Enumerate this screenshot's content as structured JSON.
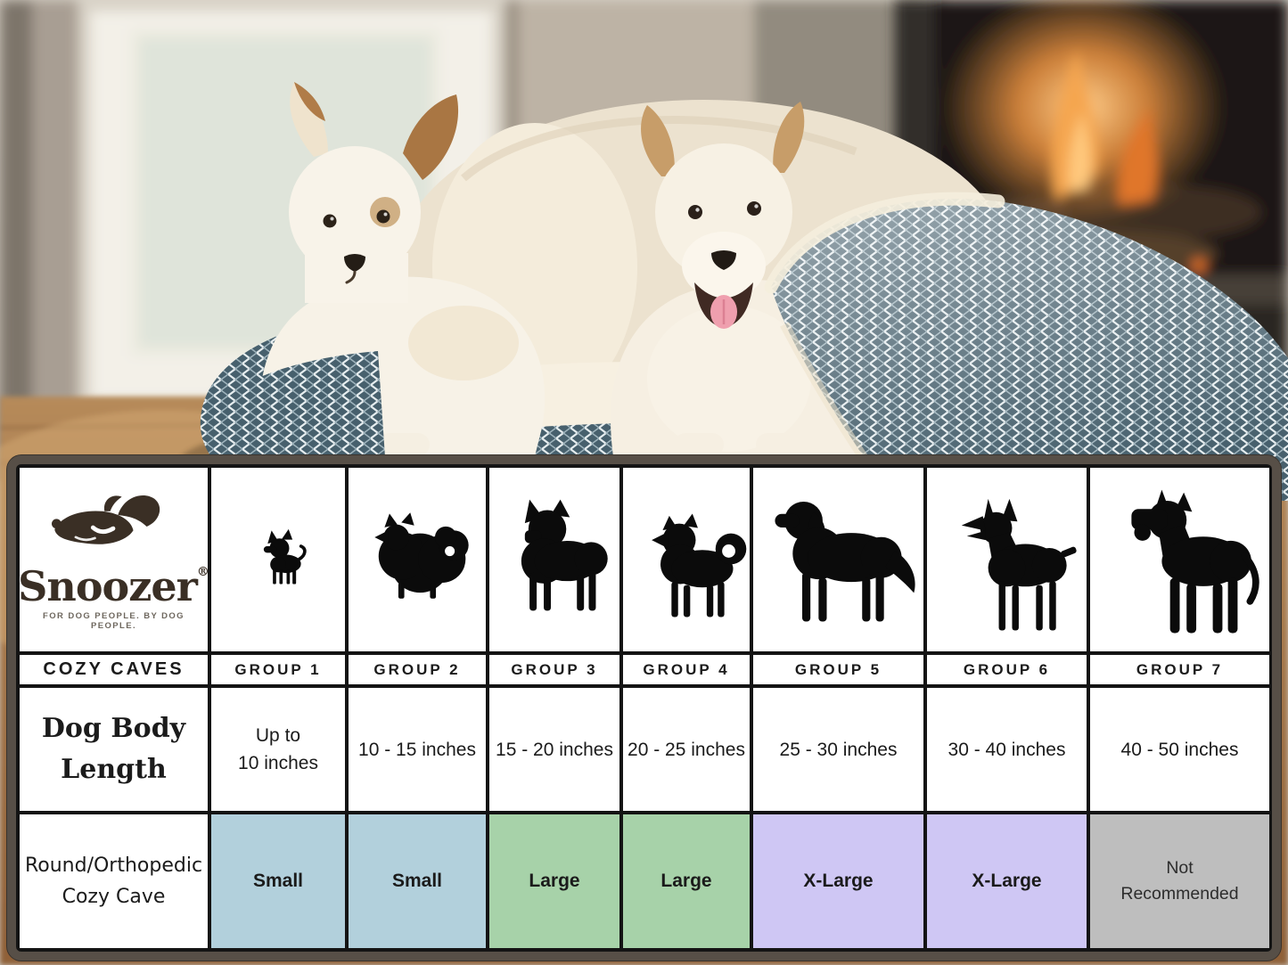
{
  "hero": {
    "alt": "Two small white dogs resting in a sherpa-lined herringbone Cozy Cave dog bed in front of a lit fireplace"
  },
  "brand": {
    "name": "Snoozer",
    "registered_mark": "®",
    "tagline": "FOR DOG PEOPLE. BY DOG PEOPLE.",
    "logo_icon": "snoozer-dog-head-icon"
  },
  "table": {
    "category_label": "COZY CAVES",
    "body_length_row_label_lines": [
      "Dog Body",
      "Length"
    ],
    "product_row_label_lines": [
      "Round/Orthopedic",
      "Cozy Cave"
    ],
    "groups": [
      {
        "label": "GROUP 1",
        "dog_icon": "chihuahua-silhouette-icon",
        "length_lines": [
          "Up to",
          "10 inches"
        ],
        "size_lines": [
          "Small"
        ],
        "size_color": "#b2d0dc"
      },
      {
        "label": "GROUP 2",
        "dog_icon": "pomeranian-silhouette-icon",
        "length_lines": [
          "10 - 15 inches"
        ],
        "size_lines": [
          "Small"
        ],
        "size_color": "#b2d0dc"
      },
      {
        "label": "GROUP 3",
        "dog_icon": "boston-terrier-silhouette-icon",
        "length_lines": [
          "15 - 20 inches"
        ],
        "size_lines": [
          "Large"
        ],
        "size_color": "#a7d2a9"
      },
      {
        "label": "GROUP 4",
        "dog_icon": "shiba-inu-silhouette-icon",
        "length_lines": [
          "20 - 25 inches"
        ],
        "size_lines": [
          "Large"
        ],
        "size_color": "#a7d2a9"
      },
      {
        "label": "GROUP 5",
        "dog_icon": "golden-retriever-silhouette-icon",
        "length_lines": [
          "25 - 30 inches"
        ],
        "size_lines": [
          "X-Large"
        ],
        "size_color": "#cfc7f4"
      },
      {
        "label": "GROUP 6",
        "dog_icon": "doberman-silhouette-icon",
        "length_lines": [
          "30 - 40 inches"
        ],
        "size_lines": [
          "X-Large"
        ],
        "size_color": "#cfc7f4"
      },
      {
        "label": "GROUP 7",
        "dog_icon": "great-dane-silhouette-icon",
        "length_lines": [
          "40 - 50 inches"
        ],
        "size_lines": [
          "Not",
          "Recommended"
        ],
        "size_color": "#bebebe"
      }
    ]
  },
  "colors": {
    "brand_brown": "#372d24",
    "size_small_blue": "#b2d0dc",
    "size_large_green": "#a7d2a9",
    "size_xlarge_purple": "#cfc7f4",
    "not_recommended_gray": "#bebebe",
    "table_border_black": "#141414",
    "outer_frame": "#574f47"
  },
  "chart_data": {
    "type": "table",
    "title": "Snoozer Cozy Caves dog bed sizing chart",
    "columns": [
      "COZY CAVES",
      "GROUP 1",
      "GROUP 2",
      "GROUP 3",
      "GROUP 4",
      "GROUP 5",
      "GROUP 6",
      "GROUP 7"
    ],
    "rows": [
      {
        "label": "Dog Body Length",
        "values": [
          "Up to 10 inches",
          "10 - 15 inches",
          "15 - 20 inches",
          "20 - 25 inches",
          "25 - 30 inches",
          "30 - 40 inches",
          "40 - 50 inches"
        ]
      },
      {
        "label": "Round/Orthopedic Cozy Cave",
        "values": [
          "Small",
          "Small",
          "Large",
          "Large",
          "X-Large",
          "X-Large",
          "Not Recommended"
        ]
      }
    ],
    "legend_position": "none",
    "grid": true
  }
}
